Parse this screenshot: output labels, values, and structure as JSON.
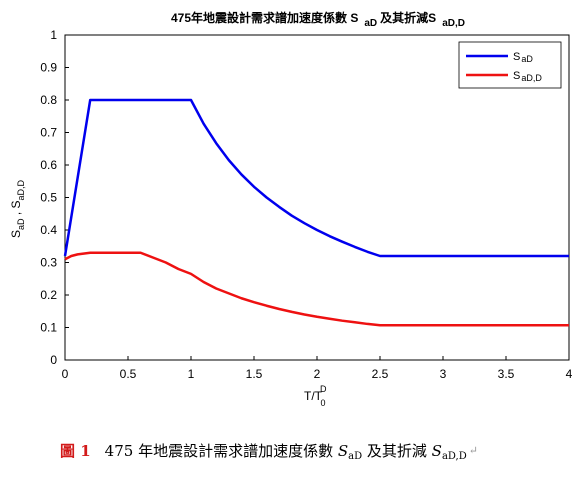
{
  "chart_data": {
    "type": "line",
    "title": {
      "prefix": "475年地震設計需求譜加速度係數 S",
      "sub1": "aD",
      "mid": "及其折減S",
      "sub2": "aD,D"
    },
    "xlabel": {
      "main": "T/T",
      "sub": "0",
      "sup": "D"
    },
    "ylabel": {
      "part1": "S",
      "sub1": "aD",
      "sep": " , S",
      "sub2": "aD,D"
    },
    "xlim": [
      0,
      4
    ],
    "ylim": [
      0,
      1
    ],
    "xticks": [
      0,
      0.5,
      1,
      1.5,
      2,
      2.5,
      3,
      3.5,
      4
    ],
    "xtick_labels": [
      "0",
      "0.5",
      "1",
      "1.5",
      "2",
      "2.5",
      "3",
      "3.5",
      "4"
    ],
    "yticks": [
      0,
      0.1,
      0.2,
      0.3,
      0.4,
      0.5,
      0.6,
      0.7,
      0.8,
      0.9,
      1
    ],
    "ytick_labels": [
      "0",
      "0.1",
      "0.2",
      "0.3",
      "0.4",
      "0.5",
      "0.6",
      "0.7",
      "0.8",
      "0.9",
      "1"
    ],
    "grid": false,
    "legend_position": "top-right",
    "series": [
      {
        "name": "SaD",
        "legend_main": "S",
        "legend_sub": "aD",
        "color": "#0000ee",
        "x": [
          0,
          0.2,
          1.0,
          1.1,
          1.2,
          1.3,
          1.4,
          1.5,
          1.6,
          1.7,
          1.8,
          1.9,
          2.0,
          2.1,
          2.2,
          2.3,
          2.4,
          2.5,
          4.0
        ],
        "y": [
          0.32,
          0.8,
          0.8,
          0.727,
          0.667,
          0.615,
          0.571,
          0.533,
          0.5,
          0.471,
          0.444,
          0.421,
          0.4,
          0.381,
          0.364,
          0.348,
          0.333,
          0.32,
          0.32
        ]
      },
      {
        "name": "SaD,D",
        "legend_main": "S",
        "legend_sub": "aD,D",
        "color": "#ee1111",
        "x": [
          0,
          0.05,
          0.1,
          0.2,
          0.4,
          0.6,
          0.7,
          0.8,
          0.9,
          1.0,
          1.1,
          1.2,
          1.3,
          1.4,
          1.5,
          1.6,
          1.7,
          1.8,
          1.9,
          2.0,
          2.1,
          2.2,
          2.3,
          2.4,
          2.5,
          4.0
        ],
        "y": [
          0.31,
          0.32,
          0.325,
          0.33,
          0.33,
          0.33,
          0.315,
          0.3,
          0.28,
          0.265,
          0.24,
          0.22,
          0.205,
          0.19,
          0.178,
          0.167,
          0.157,
          0.148,
          0.14,
          0.133,
          0.127,
          0.121,
          0.116,
          0.111,
          0.107,
          0.107
        ]
      }
    ]
  },
  "caption": {
    "figure_label": "圖 1",
    "text": "475 年地震設計需求譜加速度係數 ",
    "sym1": "S",
    "sub1": "aD",
    "mid": " 及其折減 ",
    "sym2": "S",
    "sub2": "aD,D",
    "mark": "↵"
  }
}
